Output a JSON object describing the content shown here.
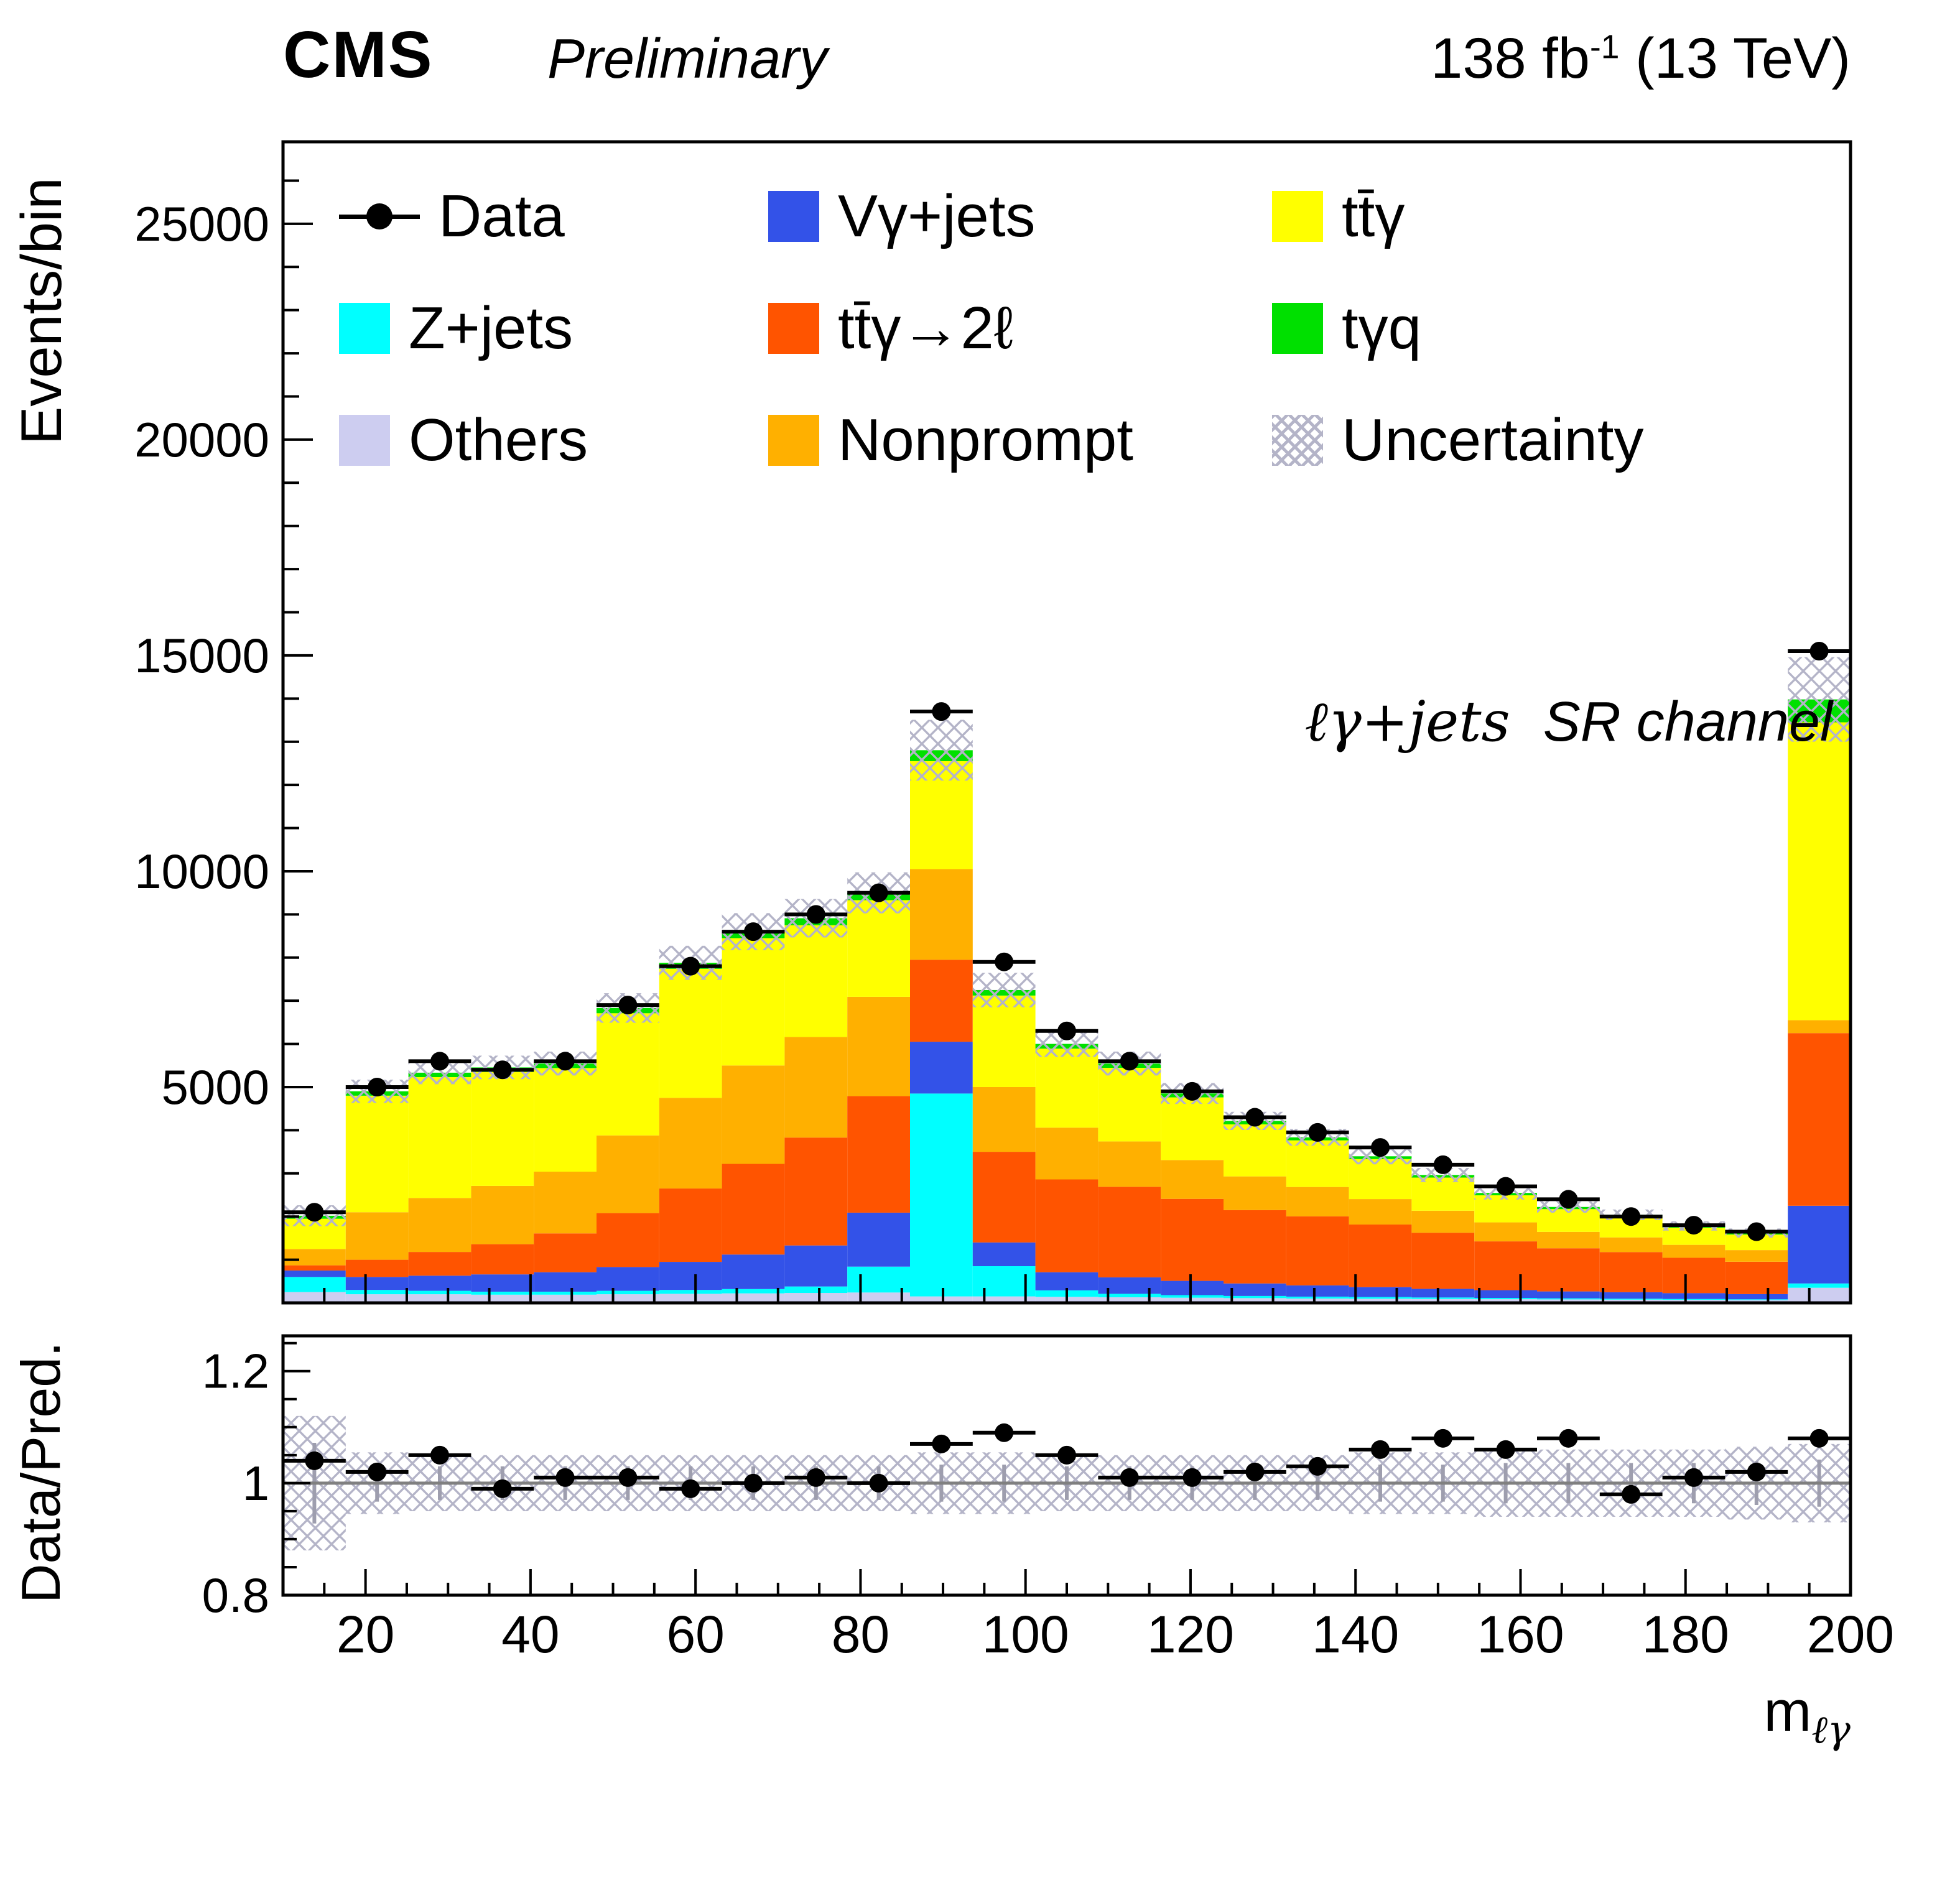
{
  "header": {
    "experiment": "CMS",
    "label": "Preliminary",
    "lumi_value": "138 fb",
    "lumi_exponent": "-1",
    "lumi_suffix": " (13 TeV)"
  },
  "axes": {
    "main_ylabel": "Events/bin",
    "ratio_ylabel": "Data/Pred.",
    "xlabel_base": "m",
    "xlabel_sub": "ℓγ"
  },
  "annotation": {
    "channel_math": "ℓγ+jets",
    "channel_text": "SR channel"
  },
  "legend": {
    "items": [
      {
        "label": "Data",
        "type": "marker"
      },
      {
        "label": "Vγ+jets",
        "type": "fill",
        "color": "#3352e8"
      },
      {
        "label": "tt̄γ",
        "type": "fill",
        "color": "#ffff00"
      },
      {
        "label": "Z+jets",
        "type": "fill",
        "color": "#00ffff"
      },
      {
        "label": "tt̄γ→2ℓ",
        "type": "fill",
        "color": "#ff5400"
      },
      {
        "label": "tγq",
        "type": "fill",
        "color": "#00e000"
      },
      {
        "label": "Others",
        "type": "fill",
        "color": "#cdcdf0"
      },
      {
        "label": "Nonprompt",
        "type": "fill",
        "color": "#ffb000"
      },
      {
        "label": "Uncertainty",
        "type": "hatch"
      }
    ]
  },
  "chart_data": {
    "type": "bar",
    "subtype": "stacked-histogram-with-ratio",
    "title": "",
    "xlabel": "m_lγ",
    "ylabel": "Events/bin",
    "ratio_label": "Data/Pred.",
    "x_range": [
      10,
      200
    ],
    "bin_edges": [
      10,
      17.6,
      25.2,
      32.8,
      40.4,
      48,
      55.6,
      63.2,
      70.8,
      78.4,
      86,
      93.6,
      101.2,
      108.8,
      116.4,
      124,
      131.6,
      139.2,
      146.8,
      154.4,
      162,
      169.6,
      177.2,
      184.8,
      192.4,
      200
    ],
    "main_ylim": [
      0,
      26900
    ],
    "main_yticks_major": [
      5000,
      10000,
      15000,
      20000,
      25000
    ],
    "main_ytick_labels": [
      "5000",
      "10000",
      "15000",
      "20000",
      "25000"
    ],
    "main_minor_step": 1000,
    "xticks_major": [
      20,
      40,
      60,
      80,
      100,
      120,
      140,
      160,
      180,
      200
    ],
    "x_minor_step": 5,
    "ratio_ylim": [
      0.8,
      1.263
    ],
    "ratio_yticks": [
      0.8,
      1.0,
      1.2
    ],
    "ratio_ytick_labels": [
      "0.8",
      "1",
      "1.2"
    ],
    "ratio_minor_step": 0.05,
    "legend_position": "top-inside",
    "grid": false,
    "uncertainty_color": "#b4b4c8",
    "series": [
      {
        "key": "others",
        "name": "Others",
        "color": "#cdcdf0",
        "values": [
          250,
          200,
          200,
          190,
          190,
          200,
          210,
          220,
          230,
          240,
          150,
          150,
          140,
          130,
          120,
          110,
          100,
          95,
          90,
          85,
          80,
          75,
          70,
          65,
          350
        ]
      },
      {
        "key": "zjets",
        "name": "Z+jets",
        "color": "#00ffff",
        "values": [
          350,
          100,
          80,
          70,
          70,
          80,
          90,
          100,
          150,
          600,
          4700,
          700,
          150,
          80,
          60,
          50,
          45,
          40,
          35,
          30,
          25,
          22,
          20,
          18,
          100
        ]
      },
      {
        "key": "vgjets",
        "name": "Vγ+jets",
        "color": "#3352e8",
        "values": [
          150,
          300,
          350,
          400,
          450,
          550,
          650,
          800,
          950,
          1250,
          1200,
          550,
          420,
          380,
          330,
          290,
          260,
          230,
          200,
          180,
          160,
          150,
          135,
          120,
          1800
        ]
      },
      {
        "key": "ttg2l",
        "name": "tt̄γ→2ℓ",
        "color": "#ff5400",
        "values": [
          120,
          400,
          550,
          700,
          900,
          1250,
          1700,
          2100,
          2500,
          2700,
          1900,
          2100,
          2150,
          2100,
          1900,
          1700,
          1600,
          1450,
          1300,
          1130,
          1000,
          930,
          820,
          750,
          4000
        ]
      },
      {
        "key": "nonprompt",
        "name": "Nonprompt",
        "color": "#ffb000",
        "values": [
          380,
          1100,
          1250,
          1350,
          1430,
          1800,
          2100,
          2280,
          2330,
          2300,
          2100,
          1500,
          1200,
          1050,
          900,
          780,
          680,
          590,
          510,
          440,
          380,
          340,
          300,
          270,
          300
        ]
      },
      {
        "key": "ttg",
        "name": "tt̄γ",
        "color": "#ffff00",
        "values": [
          700,
          2700,
          2800,
          2640,
          2400,
          2830,
          2990,
          2950,
          2590,
          2240,
          2500,
          2120,
          1830,
          1705,
          1451,
          1206,
          1080,
          926,
          768,
          627,
          527,
          479,
          397,
          360,
          6900
        ]
      },
      {
        "key": "tgq",
        "name": "tγq",
        "color": "#00e000",
        "values": [
          69,
          102,
          103,
          105,
          105,
          122,
          139,
          150,
          161,
          170,
          254,
          128,
          110,
          100,
          90,
          80,
          70,
          65,
          60,
          55,
          50,
          45,
          40,
          35,
          531
        ]
      }
    ],
    "data_points": [
      2100,
      5000,
      5600,
      5400,
      5600,
      6900,
      7800,
      8600,
      9000,
      9500,
      13700,
      7900,
      6300,
      5600,
      4900,
      4300,
      3950,
      3600,
      3200,
      2700,
      2400,
      2000,
      1800,
      1650,
      15100
    ],
    "ratio_points": [
      1.04,
      1.02,
      1.05,
      0.99,
      1.01,
      1.01,
      0.99,
      1.0,
      1.01,
      1.0,
      1.07,
      1.09,
      1.05,
      1.01,
      1.01,
      1.02,
      1.03,
      1.06,
      1.08,
      1.06,
      1.08,
      0.98,
      1.01,
      1.02,
      1.08
    ],
    "mc_rel_err": [
      0.12,
      0.055,
      0.05,
      0.05,
      0.05,
      0.05,
      0.05,
      0.05,
      0.05,
      0.05,
      0.055,
      0.055,
      0.05,
      0.05,
      0.05,
      0.05,
      0.05,
      0.055,
      0.055,
      0.06,
      0.06,
      0.06,
      0.06,
      0.065,
      0.07
    ]
  }
}
